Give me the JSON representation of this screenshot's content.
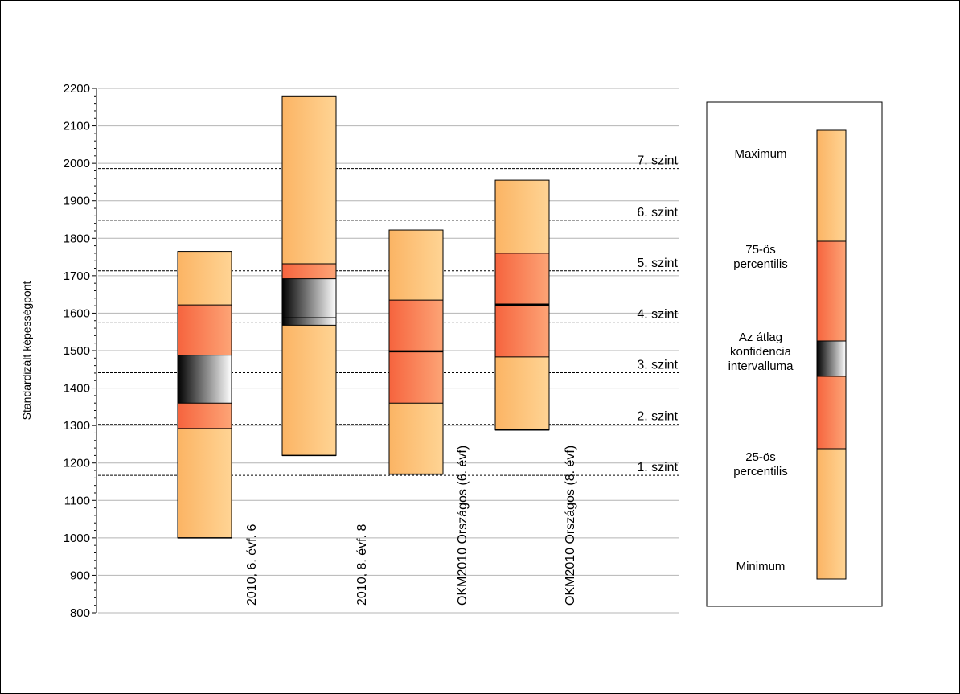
{
  "chart_data": {
    "type": "boxplot",
    "ylabel": "Standardizált képességpont",
    "ylim": [
      800,
      2200
    ],
    "ytick_step": 100,
    "grid": true,
    "categories": [
      "2010, 6. évf. 6",
      "2010, 8. évf. 8",
      "OKM2010 Országos (6. évf)",
      "OKM2010 Országos (8. évf)"
    ],
    "boxes": [
      {
        "min": 1000,
        "p25": 1292,
        "ci_low": 1360,
        "ci_high": 1488,
        "mean": 1425,
        "p75": 1622,
        "max": 1765
      },
      {
        "min": 1220,
        "p25": 1588,
        "ci_low": 1568,
        "ci_high": 1692,
        "mean": 1640,
        "p75": 1732,
        "max": 2180
      },
      {
        "min": 1170,
        "p25": 1360,
        "ci_low": 1498,
        "ci_high": 1498,
        "mean": 1498,
        "p75": 1635,
        "max": 1822
      },
      {
        "min": 1288,
        "p25": 1483,
        "ci_low": 1623,
        "ci_high": 1623,
        "mean": 1623,
        "p75": 1760,
        "max": 1955
      }
    ],
    "levels": [
      {
        "label": "1. szint",
        "value": 1167
      },
      {
        "label": "2. szint",
        "value": 1303
      },
      {
        "label": "3. szint",
        "value": 1441
      },
      {
        "label": "4. szint",
        "value": 1576
      },
      {
        "label": "5. szint",
        "value": 1713
      },
      {
        "label": "6. szint",
        "value": 1848
      },
      {
        "label": "7. szint",
        "value": 1986
      }
    ],
    "legend": {
      "placement": "right",
      "labels": {
        "maximum": "Maximum",
        "p75": [
          "75-ös",
          "percentilis"
        ],
        "ci": [
          "Az átlag",
          "konfidencia",
          "intervalluma"
        ],
        "p25": [
          "25-ös",
          "percentilis"
        ],
        "minimum": "Minimum"
      }
    },
    "colors": {
      "outer": "#fdbb70",
      "inner": "#f9704a",
      "ci_dark": "#000000",
      "ci_light": "#ffffff",
      "grid": "#b4b4b4",
      "level_line": "#000000"
    }
  }
}
